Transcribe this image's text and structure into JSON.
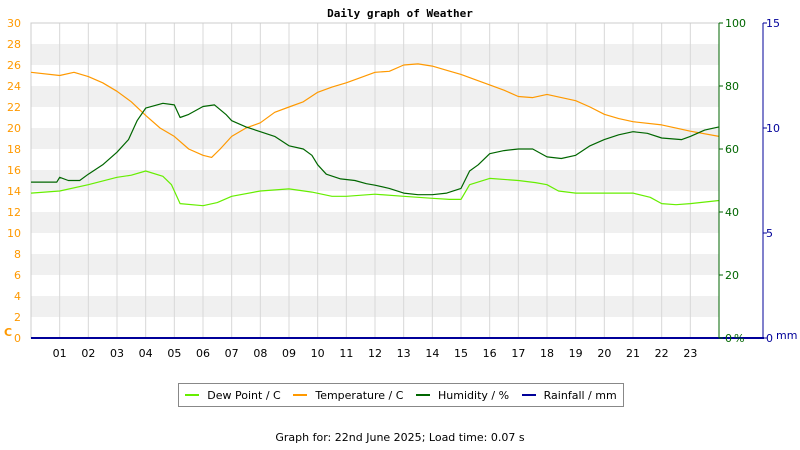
{
  "chart_data": {
    "type": "line",
    "title": "Daily graph of Weather",
    "x": {
      "ticks": [
        "01",
        "02",
        "03",
        "04",
        "05",
        "06",
        "07",
        "08",
        "09",
        "10",
        "11",
        "12",
        "13",
        "14",
        "15",
        "16",
        "17",
        "18",
        "19",
        "20",
        "21",
        "22",
        "23"
      ],
      "range_hours": [
        0,
        24
      ]
    },
    "axes": {
      "temperature": {
        "unit": "C",
        "range": [
          0,
          30
        ],
        "ticks": [
          0,
          2,
          4,
          6,
          8,
          10,
          12,
          14,
          16,
          18,
          20,
          22,
          24,
          26,
          28,
          30
        ],
        "color": "#ff9900"
      },
      "humidity": {
        "unit": "%",
        "range": [
          0,
          100
        ],
        "ticks": [
          0,
          20,
          40,
          60,
          80,
          100
        ],
        "color": "#006600"
      },
      "rainfall": {
        "unit": "mm",
        "range": [
          0,
          15
        ],
        "ticks": [
          0,
          5,
          10,
          15
        ],
        "color": "#000099"
      }
    },
    "grid": true,
    "legend_position": "bottom",
    "series": [
      {
        "name": "Dew Point / C",
        "color": "#66ee00",
        "axis": "temperature",
        "points": [
          [
            0,
            13.8
          ],
          [
            1,
            14.0
          ],
          [
            2,
            14.6
          ],
          [
            3,
            15.3
          ],
          [
            3.5,
            15.5
          ],
          [
            4,
            15.9
          ],
          [
            4.6,
            15.4
          ],
          [
            4.9,
            14.6
          ],
          [
            5.2,
            12.8
          ],
          [
            6.0,
            12.6
          ],
          [
            6.5,
            12.9
          ],
          [
            7,
            13.5
          ],
          [
            8,
            14.0
          ],
          [
            9,
            14.2
          ],
          [
            9.8,
            13.9
          ],
          [
            10.5,
            13.5
          ],
          [
            11,
            13.5
          ],
          [
            12,
            13.7
          ],
          [
            13,
            13.5
          ],
          [
            14,
            13.3
          ],
          [
            14.6,
            13.2
          ],
          [
            15,
            13.2
          ],
          [
            15.3,
            14.6
          ],
          [
            16,
            15.2
          ],
          [
            17,
            15.0
          ],
          [
            17.6,
            14.8
          ],
          [
            18,
            14.6
          ],
          [
            18.4,
            14.0
          ],
          [
            19,
            13.8
          ],
          [
            20,
            13.8
          ],
          [
            21,
            13.8
          ],
          [
            21.6,
            13.4
          ],
          [
            22,
            12.8
          ],
          [
            22.5,
            12.7
          ],
          [
            23,
            12.8
          ],
          [
            24,
            13.1
          ]
        ]
      },
      {
        "name": "Temperature / C",
        "color": "#ff9900",
        "axis": "temperature",
        "points": [
          [
            0,
            25.3
          ],
          [
            1,
            25.0
          ],
          [
            1.5,
            25.3
          ],
          [
            2,
            24.9
          ],
          [
            2.5,
            24.3
          ],
          [
            3,
            23.5
          ],
          [
            3.5,
            22.5
          ],
          [
            4,
            21.2
          ],
          [
            4.5,
            20.0
          ],
          [
            5,
            19.2
          ],
          [
            5.5,
            18.0
          ],
          [
            6,
            17.4
          ],
          [
            6.3,
            17.2
          ],
          [
            6.6,
            18.0
          ],
          [
            7,
            19.2
          ],
          [
            7.5,
            20.0
          ],
          [
            8,
            20.5
          ],
          [
            8.5,
            21.5
          ],
          [
            9,
            22.0
          ],
          [
            9.5,
            22.5
          ],
          [
            10,
            23.4
          ],
          [
            10.5,
            23.9
          ],
          [
            11,
            24.3
          ],
          [
            11.5,
            24.8
          ],
          [
            12,
            25.3
          ],
          [
            12.5,
            25.4
          ],
          [
            13,
            26.0
          ],
          [
            13.5,
            26.1
          ],
          [
            14,
            25.9
          ],
          [
            14.5,
            25.5
          ],
          [
            15,
            25.1
          ],
          [
            15.5,
            24.6
          ],
          [
            16,
            24.1
          ],
          [
            16.5,
            23.6
          ],
          [
            17,
            23.0
          ],
          [
            17.5,
            22.9
          ],
          [
            18,
            23.2
          ],
          [
            18.5,
            22.9
          ],
          [
            19,
            22.6
          ],
          [
            19.5,
            22.0
          ],
          [
            20,
            21.3
          ],
          [
            20.5,
            20.9
          ],
          [
            21,
            20.6
          ],
          [
            22,
            20.3
          ],
          [
            23,
            19.7
          ],
          [
            24,
            19.2
          ]
        ]
      },
      {
        "name": "Humidity / %",
        "color": "#006600",
        "axis": "humidity",
        "points": [
          [
            0,
            49.5
          ],
          [
            0.9,
            49.5
          ],
          [
            1,
            51
          ],
          [
            1.3,
            50
          ],
          [
            1.7,
            50
          ],
          [
            2,
            52
          ],
          [
            2.5,
            55
          ],
          [
            3,
            59
          ],
          [
            3.4,
            63
          ],
          [
            3.7,
            69
          ],
          [
            4,
            73
          ],
          [
            4.6,
            74.5
          ],
          [
            5,
            74
          ],
          [
            5.2,
            70
          ],
          [
            5.5,
            71
          ],
          [
            6,
            73.5
          ],
          [
            6.4,
            74
          ],
          [
            6.8,
            71
          ],
          [
            7,
            69
          ],
          [
            7.5,
            67
          ],
          [
            8,
            65.5
          ],
          [
            8.5,
            64
          ],
          [
            9,
            61
          ],
          [
            9.5,
            60
          ],
          [
            9.8,
            58
          ],
          [
            10,
            55
          ],
          [
            10.3,
            52
          ],
          [
            10.8,
            50.5
          ],
          [
            11.3,
            50
          ],
          [
            11.7,
            49
          ],
          [
            12,
            48.5
          ],
          [
            12.5,
            47.5
          ],
          [
            13,
            46
          ],
          [
            13.5,
            45.5
          ],
          [
            14,
            45.5
          ],
          [
            14.5,
            46
          ],
          [
            15,
            47.5
          ],
          [
            15.3,
            53
          ],
          [
            15.6,
            55
          ],
          [
            16,
            58.5
          ],
          [
            16.5,
            59.5
          ],
          [
            17,
            60
          ],
          [
            17.5,
            60
          ],
          [
            18,
            57.5
          ],
          [
            18.5,
            57
          ],
          [
            19,
            58
          ],
          [
            19.5,
            61
          ],
          [
            20,
            63
          ],
          [
            20.5,
            64.5
          ],
          [
            21,
            65.5
          ],
          [
            21.5,
            65
          ],
          [
            22,
            63.5
          ],
          [
            22.7,
            63
          ],
          [
            23,
            64
          ],
          [
            23.5,
            66
          ],
          [
            24,
            67
          ]
        ]
      },
      {
        "name": "Rainfall / mm",
        "color": "#000099",
        "axis": "rainfall",
        "points": [
          [
            0,
            0
          ],
          [
            24,
            0
          ]
        ]
      }
    ]
  },
  "footer": {
    "prefix": "Graph for:",
    "date": "22nd June 2025",
    "load_label": "Load time:",
    "load_value": "0.07 s"
  }
}
